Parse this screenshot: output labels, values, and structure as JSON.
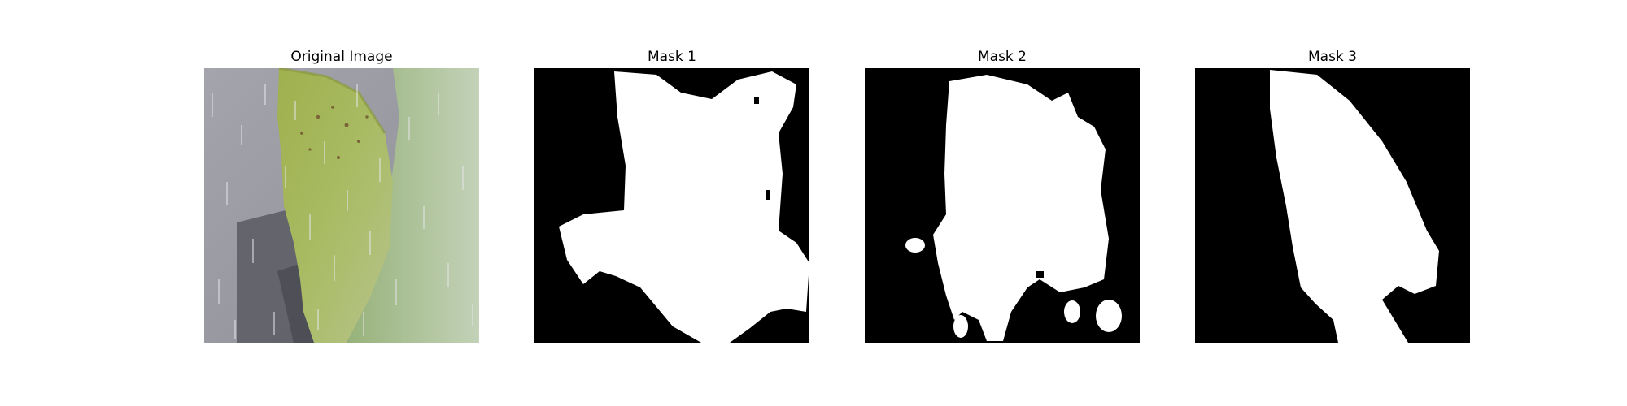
{
  "figure": {
    "panels": [
      {
        "title": "Original Image",
        "kind": "photo"
      },
      {
        "title": "Mask 1",
        "kind": "mask"
      },
      {
        "title": "Mask 2",
        "kind": "mask"
      },
      {
        "title": "Mask 3",
        "kind": "mask"
      }
    ]
  },
  "colors": {
    "mask_background": "#000000",
    "mask_foreground": "#ffffff",
    "photo_background": "#9a9aa2",
    "leaf_green": "#a5b85a",
    "leaf_pale": "#b9cbb0",
    "shadow": "#54545c"
  }
}
